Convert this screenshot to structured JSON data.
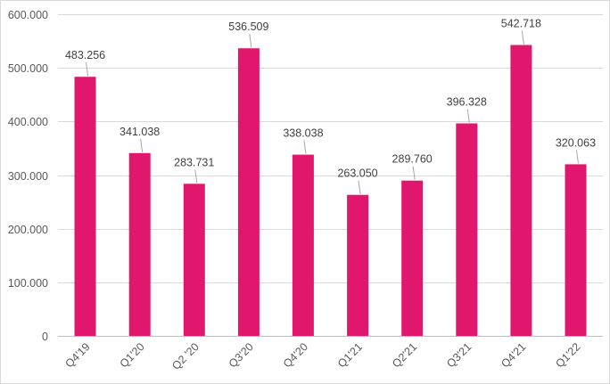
{
  "chart_data": {
    "type": "bar",
    "title": "",
    "xlabel": "",
    "ylabel": "",
    "categories": [
      "Q4'19",
      "Q1'20",
      "Q2 '20",
      "Q3'20",
      "Q4'20",
      "Q1'21",
      "Q2'21",
      "Q3'21",
      "Q4'21",
      "Q1'22"
    ],
    "values": [
      483256,
      341038,
      283731,
      536509,
      338038,
      263050,
      289760,
      396328,
      542718,
      320063
    ],
    "value_labels": [
      "483.256",
      "341.038",
      "283.731",
      "536.509",
      "338.038",
      "263.050",
      "289.760",
      "396.328",
      "542.718",
      "320.063"
    ],
    "ylim": [
      0,
      600000
    ],
    "yticks": [
      0,
      100000,
      200000,
      300000,
      400000,
      500000,
      600000
    ],
    "ytick_labels": [
      "0",
      "100.000",
      "200.000",
      "300.000",
      "400.000",
      "500.000",
      "600.000"
    ],
    "grid": true,
    "legend": "none",
    "bar_color": "#e0176c",
    "grid_color": "#d9d9d9"
  }
}
